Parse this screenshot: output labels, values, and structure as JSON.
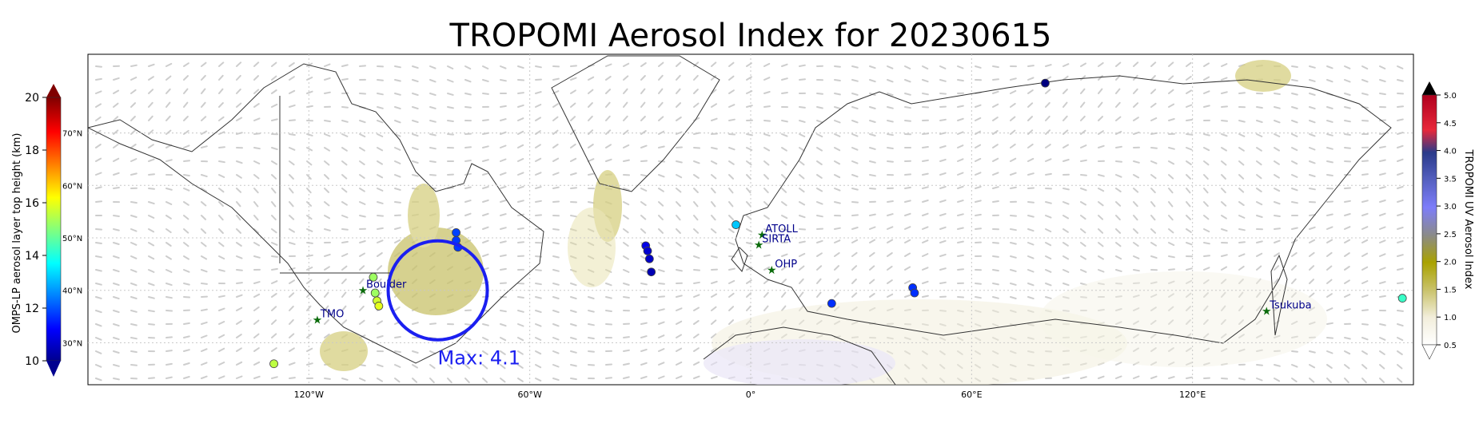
{
  "chart_data": {
    "type": "scatter",
    "title": "TROPOMI Aerosol Index for 20230615",
    "map": {
      "projection": "plate-carree",
      "lon_range": [
        -180,
        180
      ],
      "lat_range": [
        22,
        85
      ],
      "grid": true,
      "x_ticks": [
        {
          "lon": -120,
          "label": "120°W"
        },
        {
          "lon": -60,
          "label": "60°W"
        },
        {
          "lon": 0,
          "label": "0°"
        },
        {
          "lon": 60,
          "label": "60°E"
        },
        {
          "lon": 120,
          "label": "120°E"
        }
      ],
      "y_ticks": [
        {
          "lat": 30,
          "label": "30°N"
        },
        {
          "lat": 40,
          "label": "40°N"
        },
        {
          "lat": 50,
          "label": "50°N"
        },
        {
          "lat": 60,
          "label": "60°N"
        },
        {
          "lat": 70,
          "label": "70°N"
        }
      ]
    },
    "left_colorbar": {
      "label": "OMPS-LP aerosol layer top height (km)",
      "range": [
        10,
        20
      ],
      "ticks": [
        "10",
        "12",
        "14",
        "16",
        "18",
        "20"
      ],
      "colormap": "jet",
      "extend": "both"
    },
    "right_colorbar": {
      "label": "TROPOMI UV Aerosol Index",
      "range": [
        0.5,
        5.0
      ],
      "ticks": [
        "0.5",
        "1.0",
        "1.5",
        "2.0",
        "2.5",
        "3.0",
        "3.5",
        "4.0",
        "4.5",
        "5.0"
      ],
      "extend": "both",
      "colors": [
        "#ffffff",
        "#f2eedb",
        "#c9c26a",
        "#a9a200",
        "#8a8a8a",
        "#7d7dfa",
        "#5560c0",
        "#2a3a8a",
        "#e8283a",
        "#b0001e",
        "#000000"
      ]
    },
    "stations": [
      {
        "name": "TMO",
        "lon": -117.7,
        "lat": 34.4
      },
      {
        "name": "Boulder",
        "lon": -105.3,
        "lat": 40.0
      },
      {
        "name": "ATOLL",
        "lon": 3.1,
        "lat": 50.6
      },
      {
        "name": "SIRTA",
        "lon": 2.2,
        "lat": 48.7
      },
      {
        "name": "OHP",
        "lon": 5.7,
        "lat": 43.9
      },
      {
        "name": "Tsukuba",
        "lon": 140.1,
        "lat": 36.1
      }
    ],
    "omps_points": [
      {
        "lon": 80,
        "lat": 79.5,
        "height_km": 10.0
      },
      {
        "lon": -80,
        "lat": 51,
        "height_km": 11.9
      },
      {
        "lon": -80,
        "lat": 49.5,
        "height_km": 11.8
      },
      {
        "lon": -79.5,
        "lat": 48.2,
        "height_km": 11.8
      },
      {
        "lon": -28.5,
        "lat": 48.5,
        "height_km": 11.0
      },
      {
        "lon": -28,
        "lat": 47.5,
        "height_km": 10.8
      },
      {
        "lon": -27.5,
        "lat": 46,
        "height_km": 10.7
      },
      {
        "lon": -27,
        "lat": 43.5,
        "height_km": 10.5
      },
      {
        "lon": -4,
        "lat": 52.5,
        "height_km": 13.2
      },
      {
        "lon": 22,
        "lat": 37.5,
        "height_km": 11.7
      },
      {
        "lon": 44,
        "lat": 40.5,
        "height_km": 11.7
      },
      {
        "lon": 44.5,
        "lat": 39.5,
        "height_km": 11.7
      },
      {
        "lon": -102.5,
        "lat": 42.5,
        "height_km": 15.3
      },
      {
        "lon": -102,
        "lat": 39.5,
        "height_km": 15.3
      },
      {
        "lon": -101.5,
        "lat": 38,
        "height_km": 15.8
      },
      {
        "lon": -101,
        "lat": 37,
        "height_km": 16.0
      },
      {
        "lon": -129.5,
        "lat": 26,
        "height_km": 15.6
      },
      {
        "lon": 177,
        "lat": 38.5,
        "height_km": 14.3
      }
    ],
    "max_marker": {
      "lon": -85,
      "lat": 40,
      "label": "Max: 4.1"
    }
  }
}
